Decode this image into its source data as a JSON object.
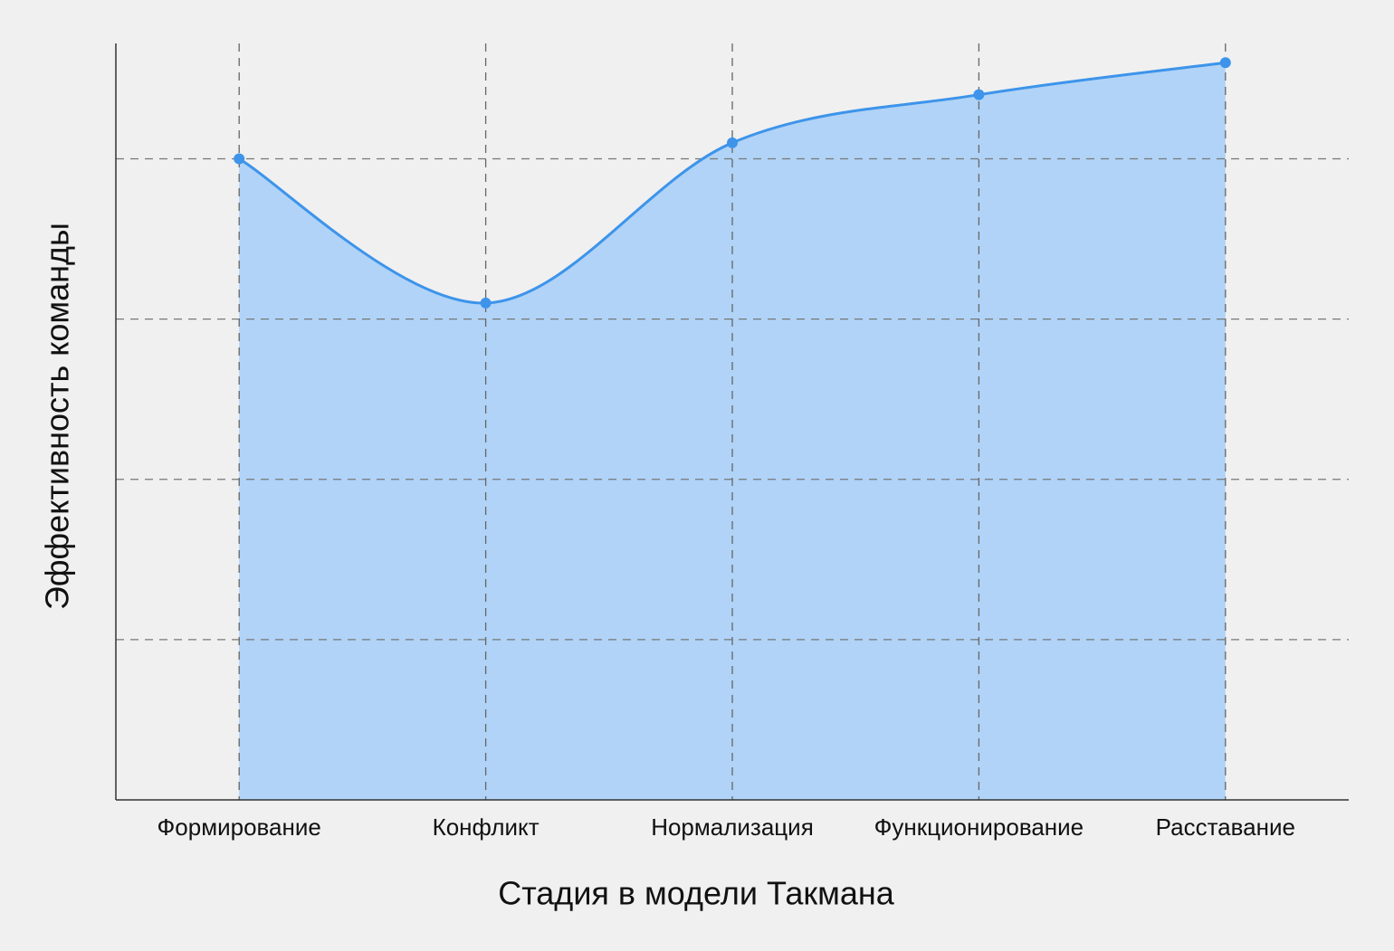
{
  "chart_data": {
    "type": "area",
    "x_label": "Стадия в модели Такмана",
    "y_label": "Эффективность команды",
    "categories": [
      "Формирование",
      "Конфликт",
      "Нормализация",
      "Функционирование",
      "Расставание"
    ],
    "values": [
      4.0,
      3.1,
      4.1,
      4.4,
      4.6
    ],
    "color": "#3d94ea",
    "fill_color": "#b0d3f7",
    "ylim": [
      0,
      4.72
    ],
    "yticks": [
      1,
      2,
      3,
      4
    ],
    "grid": true
  }
}
